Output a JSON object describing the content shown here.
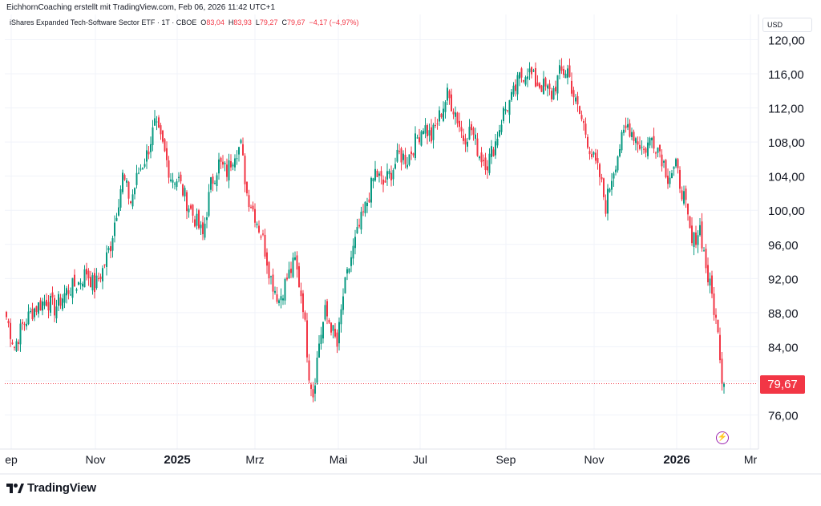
{
  "header": {
    "credit": "EichhornCoaching erstellt mit TradingView.com, Feb 06, 2026 11:42 UTC+1"
  },
  "legend": {
    "instrument": "iShares Expanded Tech-Software Sector ETF · 1T · CBOE",
    "open_label": "O",
    "open": "83,04",
    "high_label": "H",
    "high": "83,93",
    "low_label": "L",
    "low": "79,27",
    "close_label": "C",
    "close": "79,67",
    "change": "−4,17 (−4,97%)"
  },
  "currency": "USD",
  "last_price": "79,67",
  "brand": "TradingView",
  "colors": {
    "up": "#089981",
    "down": "#f23645",
    "grid": "#f0f3fa",
    "text": "#131722",
    "event": "#9c27b0"
  },
  "icons": {
    "event_marker": "lightning-icon",
    "logo": "tradingview-logo-icon"
  },
  "chart_data": {
    "type": "candlestick",
    "y_axis": {
      "side": "right",
      "ticks": [
        "76,00",
        "80,00",
        "84,00",
        "88,00",
        "92,00",
        "96,00",
        "100,00",
        "104,00",
        "108,00",
        "112,00",
        "116,00",
        "120,00"
      ],
      "range": [
        74,
        122
      ]
    },
    "x_axis": {
      "ticks": [
        {
          "label": "ep",
          "bold": false
        },
        {
          "label": "Nov",
          "bold": false
        },
        {
          "label": "2025",
          "bold": true
        },
        {
          "label": "Mrz",
          "bold": false
        },
        {
          "label": "Mai",
          "bold": false
        },
        {
          "label": "Jul",
          "bold": false
        },
        {
          "label": "Sep",
          "bold": false
        },
        {
          "label": "Nov",
          "bold": false
        },
        {
          "label": "2026",
          "bold": true
        },
        {
          "label": "Mr",
          "bold": false
        }
      ]
    },
    "grid": true,
    "last_close": 79.67,
    "price_path": [
      [
        0,
        87.5
      ],
      [
        4,
        84.0
      ],
      [
        8,
        86.5
      ],
      [
        14,
        88.5
      ],
      [
        20,
        89.5
      ],
      [
        24,
        88.5
      ],
      [
        30,
        90.5
      ],
      [
        36,
        91.5
      ],
      [
        40,
        92.8
      ],
      [
        44,
        91.0
      ],
      [
        48,
        93.0
      ],
      [
        52,
        96.0
      ],
      [
        55,
        100.0
      ],
      [
        58,
        104.0
      ],
      [
        62,
        101.0
      ],
      [
        66,
        104.5
      ],
      [
        70,
        106.5
      ],
      [
        74,
        110.0
      ],
      [
        78,
        107.5
      ],
      [
        82,
        104.0
      ],
      [
        86,
        103.5
      ],
      [
        90,
        101.0
      ],
      [
        94,
        99.0
      ],
      [
        98,
        97.0
      ],
      [
        102,
        103.0
      ],
      [
        106,
        105.5
      ],
      [
        110,
        104.5
      ],
      [
        114,
        107.0
      ],
      [
        117,
        107.5
      ],
      [
        120,
        102.0
      ],
      [
        124,
        99.5
      ],
      [
        128,
        96.5
      ],
      [
        132,
        92.0
      ],
      [
        136,
        89.5
      ],
      [
        140,
        92.0
      ],
      [
        144,
        94.0
      ],
      [
        148,
        89.0
      ],
      [
        151,
        81.0
      ],
      [
        153,
        78.5
      ],
      [
        156,
        84.5
      ],
      [
        159,
        88.0
      ],
      [
        162,
        86.5
      ],
      [
        165,
        84.0
      ],
      [
        168,
        90.0
      ],
      [
        172,
        94.5
      ],
      [
        176,
        98.0
      ],
      [
        180,
        101.0
      ],
      [
        184,
        104.5
      ],
      [
        188,
        103.0
      ],
      [
        192,
        104.5
      ],
      [
        196,
        106.5
      ],
      [
        200,
        106.0
      ],
      [
        204,
        108.0
      ],
      [
        208,
        110.0
      ],
      [
        212,
        108.5
      ],
      [
        216,
        111.0
      ],
      [
        220,
        113.5
      ],
      [
        224,
        111.5
      ],
      [
        228,
        108.5
      ],
      [
        232,
        109.5
      ],
      [
        236,
        106.5
      ],
      [
        240,
        105.5
      ],
      [
        244,
        108.0
      ],
      [
        248,
        111.5
      ],
      [
        252,
        113.0
      ],
      [
        256,
        115.5
      ],
      [
        260,
        116.5
      ],
      [
        264,
        115.0
      ],
      [
        268,
        114.5
      ],
      [
        272,
        113.5
      ],
      [
        276,
        116.0
      ],
      [
        280,
        116.5
      ],
      [
        284,
        112.5
      ],
      [
        288,
        110.0
      ],
      [
        292,
        106.5
      ],
      [
        296,
        104.0
      ],
      [
        299,
        100.5
      ],
      [
        302,
        104.0
      ],
      [
        306,
        107.5
      ],
      [
        310,
        110.0
      ],
      [
        314,
        108.5
      ],
      [
        318,
        107.0
      ],
      [
        322,
        108.5
      ],
      [
        326,
        107.0
      ],
      [
        330,
        104.0
      ],
      [
        334,
        105.0
      ],
      [
        338,
        101.5
      ],
      [
        342,
        96.0
      ],
      [
        346,
        98.0
      ],
      [
        348,
        95.0
      ],
      [
        350,
        92.0
      ],
      [
        352,
        90.0
      ],
      [
        354,
        87.0
      ],
      [
        356,
        83.5
      ],
      [
        357,
        80.2
      ],
      [
        358,
        79.67
      ]
    ]
  }
}
